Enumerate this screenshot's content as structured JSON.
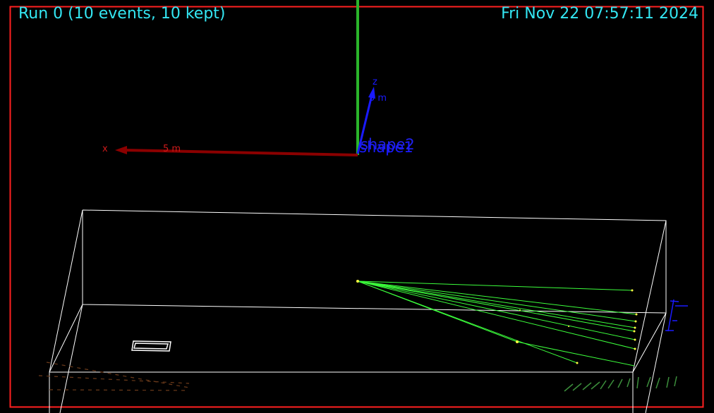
{
  "header": {
    "run_info": "Run 0 (10 events, 10 kept)",
    "date": "Fri Nov 22 07:57:11 2024"
  },
  "axes": {
    "x_label": "x",
    "x_scale": "5 m",
    "z_label": "z",
    "z_scale": "5 m",
    "shape_labels": [
      "shape1",
      "shape2"
    ]
  },
  "scene": {
    "event_count": 10,
    "kept_count": 10,
    "track_count": 9
  },
  "colors": {
    "background": "#000000",
    "frame": "#ff2020",
    "hud_text": "#33e6f2",
    "x_axis": "#8b0000",
    "y_axis": "#2ab52a",
    "z_axis": "#1a1aff",
    "geometry": "#ffffff",
    "tracks": "#3cff3c",
    "hits": "#ffff40"
  }
}
